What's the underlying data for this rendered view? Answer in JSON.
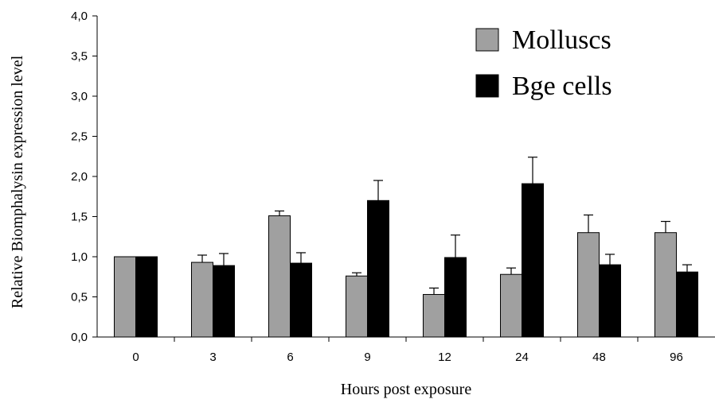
{
  "chart_data": {
    "type": "bar",
    "title": "",
    "xlabel": "Hours post exposure",
    "ylabel": "Relative Biomphalysin expression level",
    "ylim": [
      0,
      4
    ],
    "yticks": [
      "0,0",
      "0,5",
      "1,0",
      "1,5",
      "2,0",
      "2,5",
      "3,0",
      "3,5",
      "4,0"
    ],
    "categories": [
      "0",
      "3",
      "6",
      "9",
      "12",
      "24",
      "48",
      "96"
    ],
    "legend_position": "top-right",
    "grid": false,
    "series": [
      {
        "name": "Molluscs",
        "color": "#a0a0a0",
        "values": [
          1.0,
          0.93,
          1.51,
          0.76,
          0.53,
          0.78,
          1.3,
          1.3
        ],
        "errors": [
          0.0,
          0.09,
          0.06,
          0.04,
          0.08,
          0.08,
          0.22,
          0.14
        ]
      },
      {
        "name": "Bge cells",
        "color": "#000000",
        "values": [
          1.0,
          0.89,
          0.92,
          1.7,
          0.99,
          1.91,
          0.9,
          0.81
        ],
        "errors": [
          0.0,
          0.15,
          0.13,
          0.25,
          0.28,
          0.33,
          0.13,
          0.09
        ]
      }
    ]
  }
}
